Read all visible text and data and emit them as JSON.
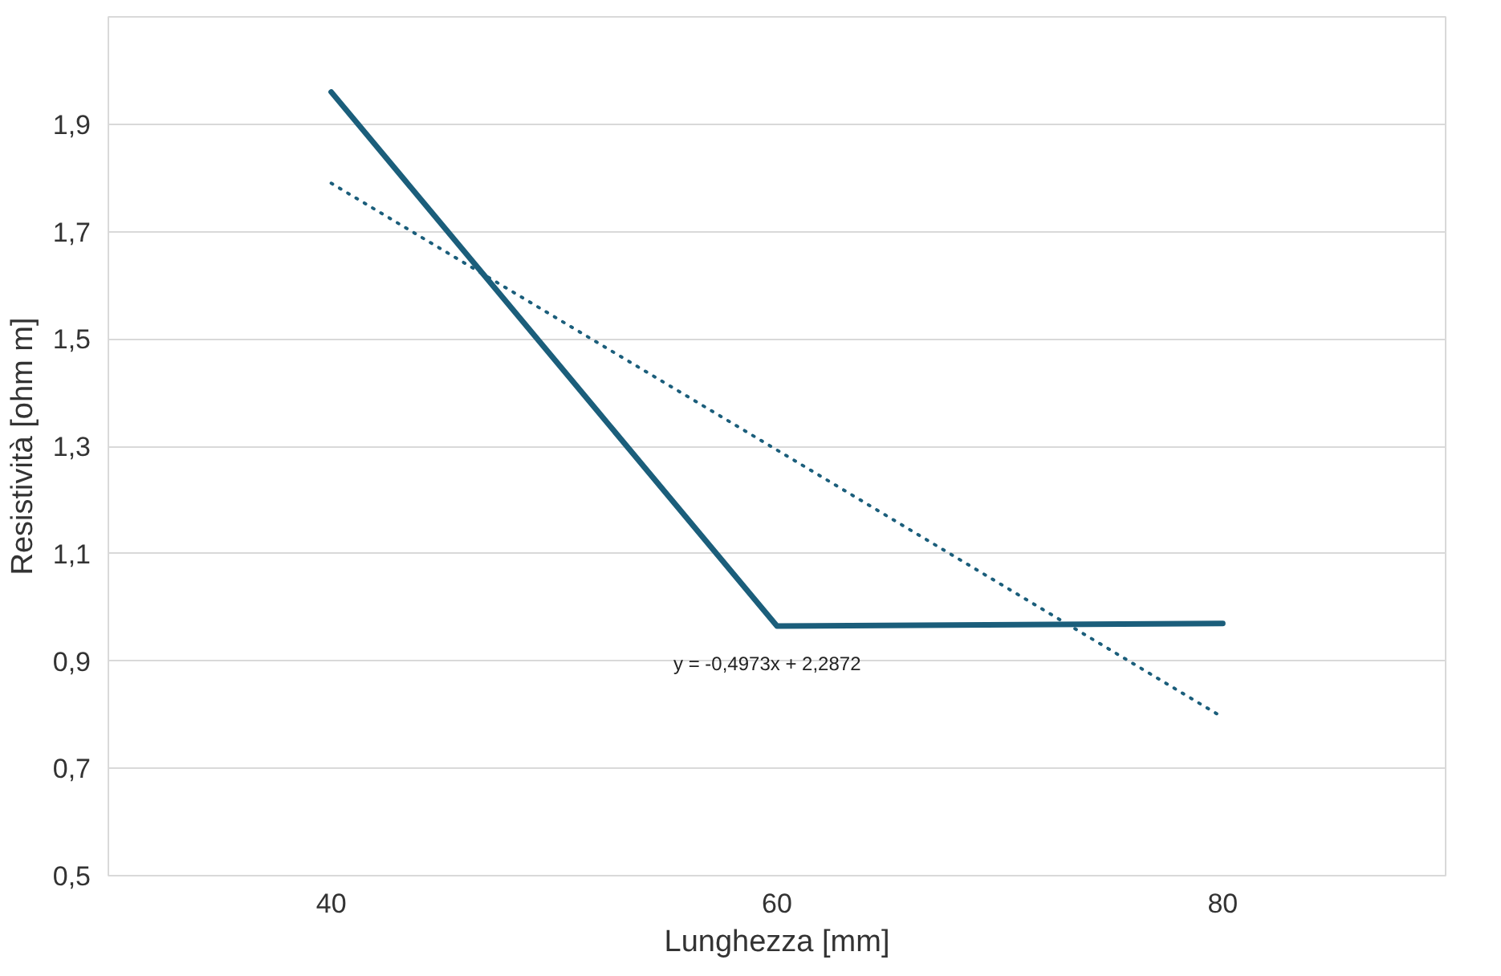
{
  "chart_data": {
    "type": "line",
    "xlabel": "Lunghezza [mm]",
    "ylabel": "Resistività [ohm m]",
    "x": [
      40,
      60,
      80
    ],
    "xlim": [
      30,
      90
    ],
    "xticks": [
      40,
      60,
      80
    ],
    "ylim": [
      0.5,
      2.1
    ],
    "yticks": [
      {
        "value": 0.5,
        "label": "0,5"
      },
      {
        "value": 0.7,
        "label": "0,7"
      },
      {
        "value": 0.9,
        "label": "0,9"
      },
      {
        "value": 1.1,
        "label": "1,1"
      },
      {
        "value": 1.3,
        "label": "1,3"
      },
      {
        "value": 1.5,
        "label": "1,5"
      },
      {
        "value": 1.7,
        "label": "1,7"
      },
      {
        "value": 1.9,
        "label": "1,9"
      }
    ],
    "grid": "y",
    "line_style": "solid",
    "marker": "none",
    "series": [
      {
        "color": "#1b5e7b",
        "values": [
          1.96,
          0.965,
          0.97
        ]
      },
      {
        "type": "line",
        "color": "#1b5e7b",
        "line_style": "dotted",
        "x": [
          40,
          60,
          80
        ],
        "values": [
          1.79,
          1.293,
          0.795
        ]
      }
    ],
    "annotations": [
      "y = -0,4973x + 2,2872"
    ]
  }
}
